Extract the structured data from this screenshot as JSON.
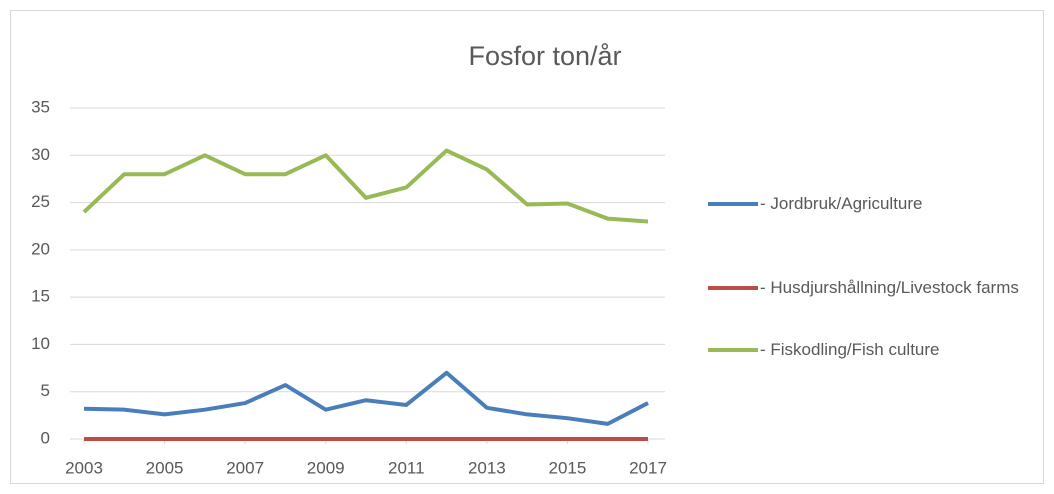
{
  "chart_data": {
    "type": "line",
    "title": "Fosfor ton/år",
    "x": [
      2003,
      2004,
      2005,
      2006,
      2007,
      2008,
      2009,
      2010,
      2011,
      2012,
      2013,
      2014,
      2015,
      2016,
      2017
    ],
    "series": [
      {
        "name": "- Jordbruk/Agriculture",
        "color": "#4a7ebb",
        "values": [
          3.2,
          3.1,
          2.6,
          3.1,
          3.8,
          5.7,
          3.1,
          4.1,
          3.6,
          7.0,
          3.3,
          2.6,
          2.2,
          1.6,
          3.8
        ]
      },
      {
        "name": "- Husdjurshållning/Livestock farms",
        "color": "#be4b48",
        "values": [
          0,
          0,
          0,
          0,
          0,
          0,
          0,
          0,
          0,
          0,
          0,
          0,
          0,
          0,
          0
        ]
      },
      {
        "name": "- Fiskodling/Fish culture",
        "color": "#98b954",
        "values": [
          24,
          28,
          28,
          30,
          28,
          28,
          30,
          25.5,
          26.6,
          30.5,
          28.5,
          24.8,
          24.9,
          23.3,
          23
        ]
      }
    ],
    "xlim": [
      2003,
      2017
    ],
    "xticks": [
      2003,
      2005,
      2007,
      2009,
      2011,
      2013,
      2015,
      2017
    ],
    "ylim": [
      0,
      35
    ],
    "yticks": [
      0,
      5,
      10,
      15,
      20,
      25,
      30,
      35
    ],
    "grid": true,
    "legend": "right"
  }
}
